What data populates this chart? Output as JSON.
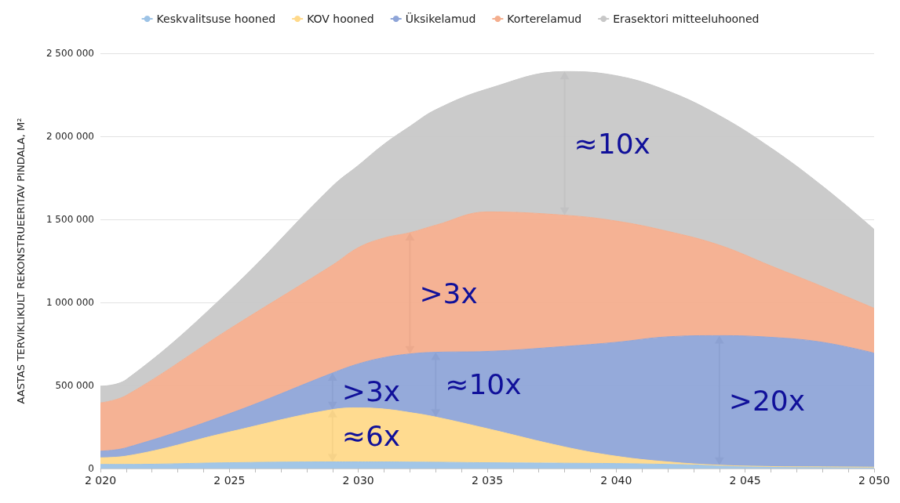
{
  "chart_data": {
    "type": "area",
    "stacked": true,
    "ylabel": "AASTAS TERVIKLIKULT REKONSTRUEERITAV PINDALA, M²",
    "legend": "top",
    "grid": "y",
    "marker": "none",
    "x": [
      2020,
      2021,
      2025,
      2029,
      2030,
      2031,
      2032,
      2033,
      2035,
      2038,
      2040,
      2042,
      2044,
      2046,
      2048,
      2050
    ],
    "series": [
      {
        "name": "Keskvalitsuse hooned",
        "color": "#9dc3e6",
        "values": [
          25000,
          25000,
          35000,
          40000,
          40000,
          40000,
          39000,
          38000,
          35000,
          32000,
          30000,
          25000,
          18000,
          12000,
          10000,
          8000
        ]
      },
      {
        "name": "KOV hooned",
        "color": "#ffd98a",
        "values": [
          40000,
          50000,
          185000,
          315000,
          325000,
          318000,
          298000,
          272000,
          205000,
          98000,
          44000,
          15000,
          2000,
          0,
          0,
          0
        ]
      },
      {
        "name": "Üksikelamud",
        "color": "#8fa5d8",
        "values": [
          40000,
          50000,
          110000,
          220000,
          265000,
          310000,
          353000,
          390000,
          465000,
          605000,
          686000,
          753000,
          780000,
          778000,
          750000,
          687000
        ]
      },
      {
        "name": "Korterelamud",
        "color": "#f4ae8e",
        "values": [
          290000,
          315000,
          510000,
          650000,
          700000,
          720000,
          730000,
          765000,
          840000,
          790000,
          730000,
          635000,
          545000,
          430000,
          335000,
          270000
        ]
      },
      {
        "name": "Erasektori mitteeluhooned",
        "color": "#c8c8c8",
        "values": [
          100000,
          95000,
          230000,
          475000,
          495000,
          565000,
          640000,
          695000,
          740000,
          865000,
          875000,
          845000,
          780000,
          710000,
          605000,
          475000
        ]
      }
    ],
    "xlim": [
      2020,
      2050
    ],
    "xticks": [
      {
        "value": 2020,
        "label": "2 020"
      },
      {
        "value": 2021,
        "label": null
      },
      {
        "value": 2022,
        "label": null
      },
      {
        "value": 2023,
        "label": null
      },
      {
        "value": 2024,
        "label": null
      },
      {
        "value": 2025,
        "label": "2 025"
      },
      {
        "value": 2026,
        "label": null
      },
      {
        "value": 2027,
        "label": null
      },
      {
        "value": 2028,
        "label": null
      },
      {
        "value": 2029,
        "label": null
      },
      {
        "value": 2030,
        "label": "2 030"
      },
      {
        "value": 2031,
        "label": null
      },
      {
        "value": 2032,
        "label": null
      },
      {
        "value": 2033,
        "label": null
      },
      {
        "value": 2034,
        "label": null
      },
      {
        "value": 2035,
        "label": "2 035"
      },
      {
        "value": 2036,
        "label": null
      },
      {
        "value": 2037,
        "label": null
      },
      {
        "value": 2038,
        "label": null
      },
      {
        "value": 2039,
        "label": null
      },
      {
        "value": 2040,
        "label": "2 040"
      },
      {
        "value": 2041,
        "label": null
      },
      {
        "value": 2042,
        "label": null
      },
      {
        "value": 2043,
        "label": null
      },
      {
        "value": 2044,
        "label": null
      },
      {
        "value": 2045,
        "label": "2 045"
      },
      {
        "value": 2046,
        "label": null
      },
      {
        "value": 2047,
        "label": null
      },
      {
        "value": 2048,
        "label": null
      },
      {
        "value": 2049,
        "label": null
      },
      {
        "value": 2050,
        "label": "2 050"
      }
    ],
    "ylim": [
      0,
      2500000
    ],
    "yticks": [
      0,
      {
        "value": 500000,
        "label": "500 000"
      },
      {
        "value": 1000000,
        "label": "1 000 000"
      },
      {
        "value": 1500000,
        "label": "1 500 000"
      },
      {
        "value": 2000000,
        "label": "2 000 000"
      },
      {
        "value": 2500000,
        "label": "2 500 000"
      }
    ],
    "annotations": [
      {
        "text": "≈10x",
        "x": 2038,
        "y": 2390000
      },
      {
        "text": ">3x",
        "x": 2032,
        "y": 1420000
      },
      {
        "text": ">3x",
        "x": 2029,
        "y": 575000
      },
      {
        "text": "≈10x",
        "x": 2033,
        "y": 700000
      },
      {
        "text": "≈6x",
        "x": 2029,
        "y": 355000
      },
      {
        "text": ">20x",
        "x": 2044,
        "y": 800000
      }
    ]
  }
}
